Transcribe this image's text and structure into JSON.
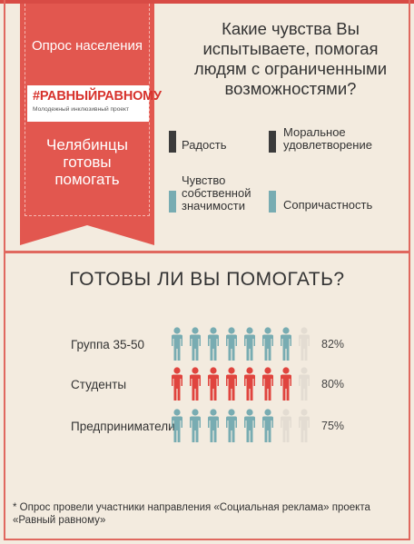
{
  "header": {
    "survey_label": "Опрос населения",
    "logo_title": "#РАВНЫЙРАВНОМУ",
    "logo_subtitle": "Молодежный инклюзивный проект",
    "ribbon_title_lines": [
      "Челябинцы",
      "готовы",
      "помогать"
    ]
  },
  "question": {
    "lines": [
      "Какие чувства Вы",
      "испытываете, помогая",
      "людям с ограниченными",
      "возможностями?"
    ]
  },
  "legend": [
    {
      "lines": [
        "Радость"
      ],
      "color": "#3b3b3b"
    },
    {
      "lines": [
        "Моральное",
        "удовлетворение"
      ],
      "color": "#3b3b3b"
    },
    {
      "lines": [
        "Чувство",
        "собственной",
        "значимости"
      ],
      "color": "#78acb2"
    },
    {
      "lines": [
        "Сопричастность"
      ],
      "color": "#78acb2"
    }
  ],
  "section": {
    "title": "ГОТОВЫ ЛИ ВЫ ПОМОГАТЬ?"
  },
  "rows": [
    {
      "label": "Группа 35-50",
      "percent": "82%",
      "filled": 7,
      "total": 8,
      "color": "#78acb2"
    },
    {
      "label": "Студенты",
      "percent": "80%",
      "filled": 7,
      "total": 8,
      "color": "#e0443e"
    },
    {
      "label": "Предприниматели",
      "percent": "75%",
      "filled": 6,
      "total": 8,
      "color": "#78acb2"
    }
  ],
  "footnote": {
    "lines": [
      "* Опрос провели участники направления «Социальная реклама» проекта",
      "«Равный равному»"
    ]
  },
  "colors": {
    "accent": "#e2574f",
    "teal": "#78acb2",
    "dark": "#3b3b3b",
    "empty_person": "#e3dcd2"
  }
}
